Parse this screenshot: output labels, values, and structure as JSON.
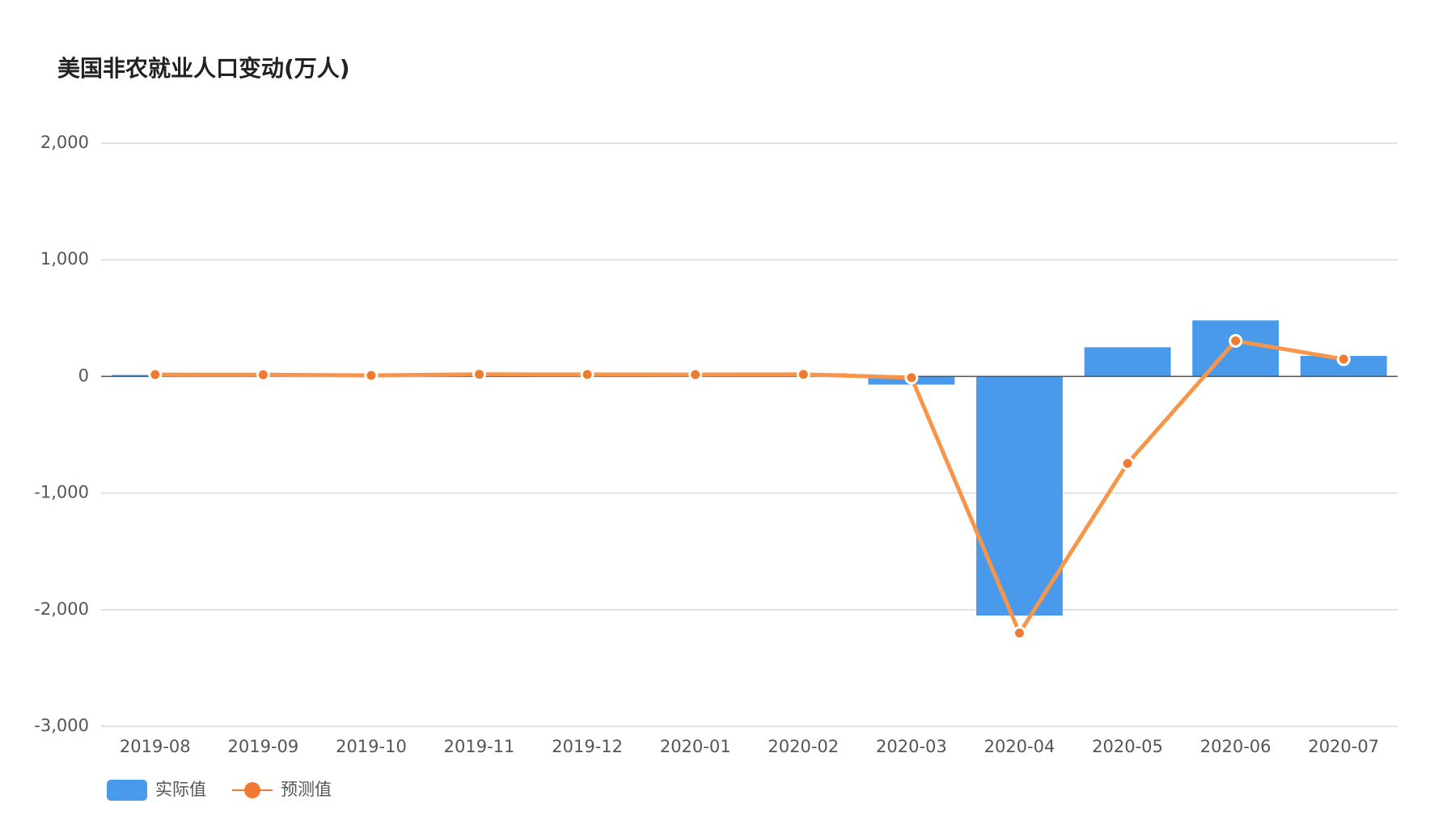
{
  "chart_data": {
    "type": "bar-line",
    "title": "美国非农就业人口变动(万人)",
    "categories": [
      "2019-08",
      "2019-09",
      "2019-10",
      "2019-11",
      "2019-12",
      "2020-01",
      "2020-02",
      "2020-03",
      "2020-04",
      "2020-05",
      "2020-06",
      "2020-07"
    ],
    "series": [
      {
        "name": "实际值",
        "type": "bar",
        "color": "#4a9aec",
        "values": [
          13,
          13.6,
          12.8,
          26.6,
          14.5,
          22.5,
          27.3,
          -70,
          -2050,
          250,
          480,
          176
        ]
      },
      {
        "name": "预测值",
        "type": "line",
        "color": "#f7964a",
        "values": [
          16,
          14.5,
          9,
          18,
          16.4,
          16,
          17.5,
          -10,
          -2200,
          -745,
          305,
          148
        ]
      }
    ],
    "ylim": [
      -3000,
      2000
    ],
    "yticks": [
      {
        "value": -3000,
        "label": "-3,000"
      },
      {
        "value": -2000,
        "label": "-2,000"
      },
      {
        "value": -1000,
        "label": "-1,000"
      },
      0,
      {
        "value": 1000,
        "label": "1,000"
      },
      {
        "value": 2000,
        "label": "2,000"
      }
    ],
    "grid": true,
    "legend": "bottom-left"
  }
}
